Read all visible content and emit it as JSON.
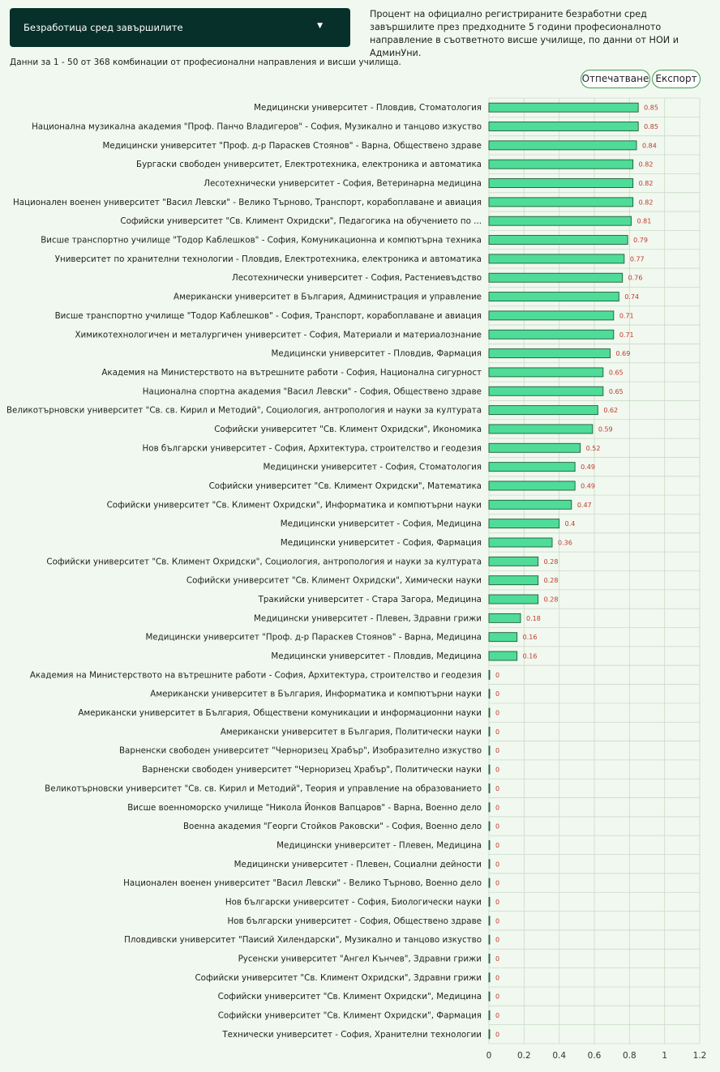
{
  "filter": {
    "selected": "Безработица сред завършилите"
  },
  "description": "Процент на официално регистрираните безработни сред завършилите през предходните 5 години професионалното направление в съответното висше училище, по данни от НОИ и АдминУни.",
  "summary": "Данни за 1 - 50 от 368 комбинации от професионални направления и висши училища.",
  "buttons": {
    "print": "Отпечатване",
    "export": "Експорт"
  },
  "colors": {
    "bar_fill": "#4fdc98",
    "bar_stroke": "#1d5c34",
    "value_label": "#c0392b",
    "grid": "#c9dcc6"
  },
  "chart_data": {
    "type": "bar",
    "orientation": "horizontal",
    "xlim": [
      0,
      1.2
    ],
    "x_ticks": [
      "0",
      "0.2",
      "0.4",
      "0.6",
      "0.8",
      "1",
      "1.2"
    ],
    "grid": true,
    "categories": [
      "Медицински университет - Пловдив, Стоматология",
      "Национална музикална академия \"Проф. Панчо Владигеров\" - София, Музикално и танцово изкуство",
      "Медицински университет \"Проф. д-р Параскев Стоянов\" - Варна, Обществено здраве",
      "Бургаски свободен университет, Електротехника, електроника и автоматика",
      "Лесотехнически университет - София, Ветеринарна медицина",
      "Национален военен университет \"Васил Левски\" - Велико Търново, Транспорт, корабоплаване и авиация",
      "Софийски университет \"Св. Климент Охридски\", Педагогика на обучението по ...",
      "Висше транспортно училище \"Тодор Каблешков\" - София, Комуникационна и компютърна техника",
      "Университет по хранителни технологии - Пловдив, Електротехника, електроника и автоматика",
      "Лесотехнически университет - София, Растениевъдство",
      "Американски университет в България, Администрация и управление",
      "Висше транспортно училище \"Тодор Каблешков\" - София, Транспорт, корабоплаване и авиация",
      "Химикотехнологичен и металургичен университет - София, Материали и материалознание",
      "Медицински университет - Пловдив, Фармация",
      "Академия на Министерството на вътрешните работи - София, Национална сигурност",
      "Национална спортна академия \"Васил Левски\" - София, Обществено здраве",
      "Великотърновски университет \"Св. св. Кирил и Методий\", Социология, антропология и науки за културата",
      "Софийски университет \"Св. Климент Охридски\", Икономика",
      "Нов български университет - София, Архитектура, строителство и геодезия",
      "Медицински университет - София, Стоматология",
      "Софийски университет \"Св. Климент Охридски\", Математика",
      "Софийски университет \"Св. Климент Охридски\", Информатика и компютърни науки",
      "Медицински университет - София, Медицина",
      "Медицински университет - София, Фармация",
      "Софийски университет \"Св. Климент Охридски\", Социология, антропология и науки за културата",
      "Софийски университет \"Св. Климент Охридски\", Химически науки",
      "Тракийски университет - Стара Загора, Медицина",
      "Медицински университет - Плевен, Здравни грижи",
      "Медицински университет \"Проф. д-р Параскев Стоянов\" - Варна, Медицина",
      "Медицински университет - Пловдив, Медицина",
      "Академия на Министерството на вътрешните работи - София, Архитектура, строителство и геодезия",
      "Американски университет в България, Информатика и компютърни науки",
      "Американски университет в България, Обществени комуникации и информационни науки",
      "Американски университет в България, Политически науки",
      "Варненски свободен университет \"Черноризец Храбър\", Изобразително изкуство",
      "Варненски свободен университет \"Черноризец Храбър\", Политически науки",
      "Великотърновски университет \"Св. св. Кирил и Методий\", Теория и управление на образованието",
      "Висше военноморско училище \"Никола Йонков Вапцаров\" - Варна, Военно дело",
      "Военна академия \"Георги Стойков Раковски\" - София, Военно дело",
      "Медицински университет - Плевен, Медицина",
      "Медицински университет - Плевен, Социални дейности",
      "Национален военен университет \"Васил Левски\" - Велико Търново, Военно дело",
      "Нов български университет - София, Биологически науки",
      "Нов български университет - София, Обществено здраве",
      "Пловдивски университет \"Паисий Хилендарски\", Музикално и танцово изкуство",
      "Русенски университет \"Ангел Кънчев\", Здравни грижи",
      "Софийски университет \"Св. Климент Охридски\", Здравни грижи",
      "Софийски университет \"Св. Климент Охридски\", Медицина",
      "Софийски университет \"Св. Климент Охридски\", Фармация",
      "Технически университет - София, Хранителни технологии"
    ],
    "values": [
      0.85,
      0.85,
      0.84,
      0.82,
      0.82,
      0.82,
      0.81,
      0.79,
      0.77,
      0.76,
      0.74,
      0.71,
      0.71,
      0.69,
      0.65,
      0.65,
      0.62,
      0.59,
      0.52,
      0.49,
      0.49,
      0.47,
      0.4,
      0.36,
      0.28,
      0.28,
      0.28,
      0.18,
      0.16,
      0.16,
      0,
      0,
      0,
      0,
      0,
      0,
      0,
      0,
      0,
      0,
      0,
      0,
      0,
      0,
      0,
      0,
      0,
      0,
      0,
      0
    ]
  }
}
